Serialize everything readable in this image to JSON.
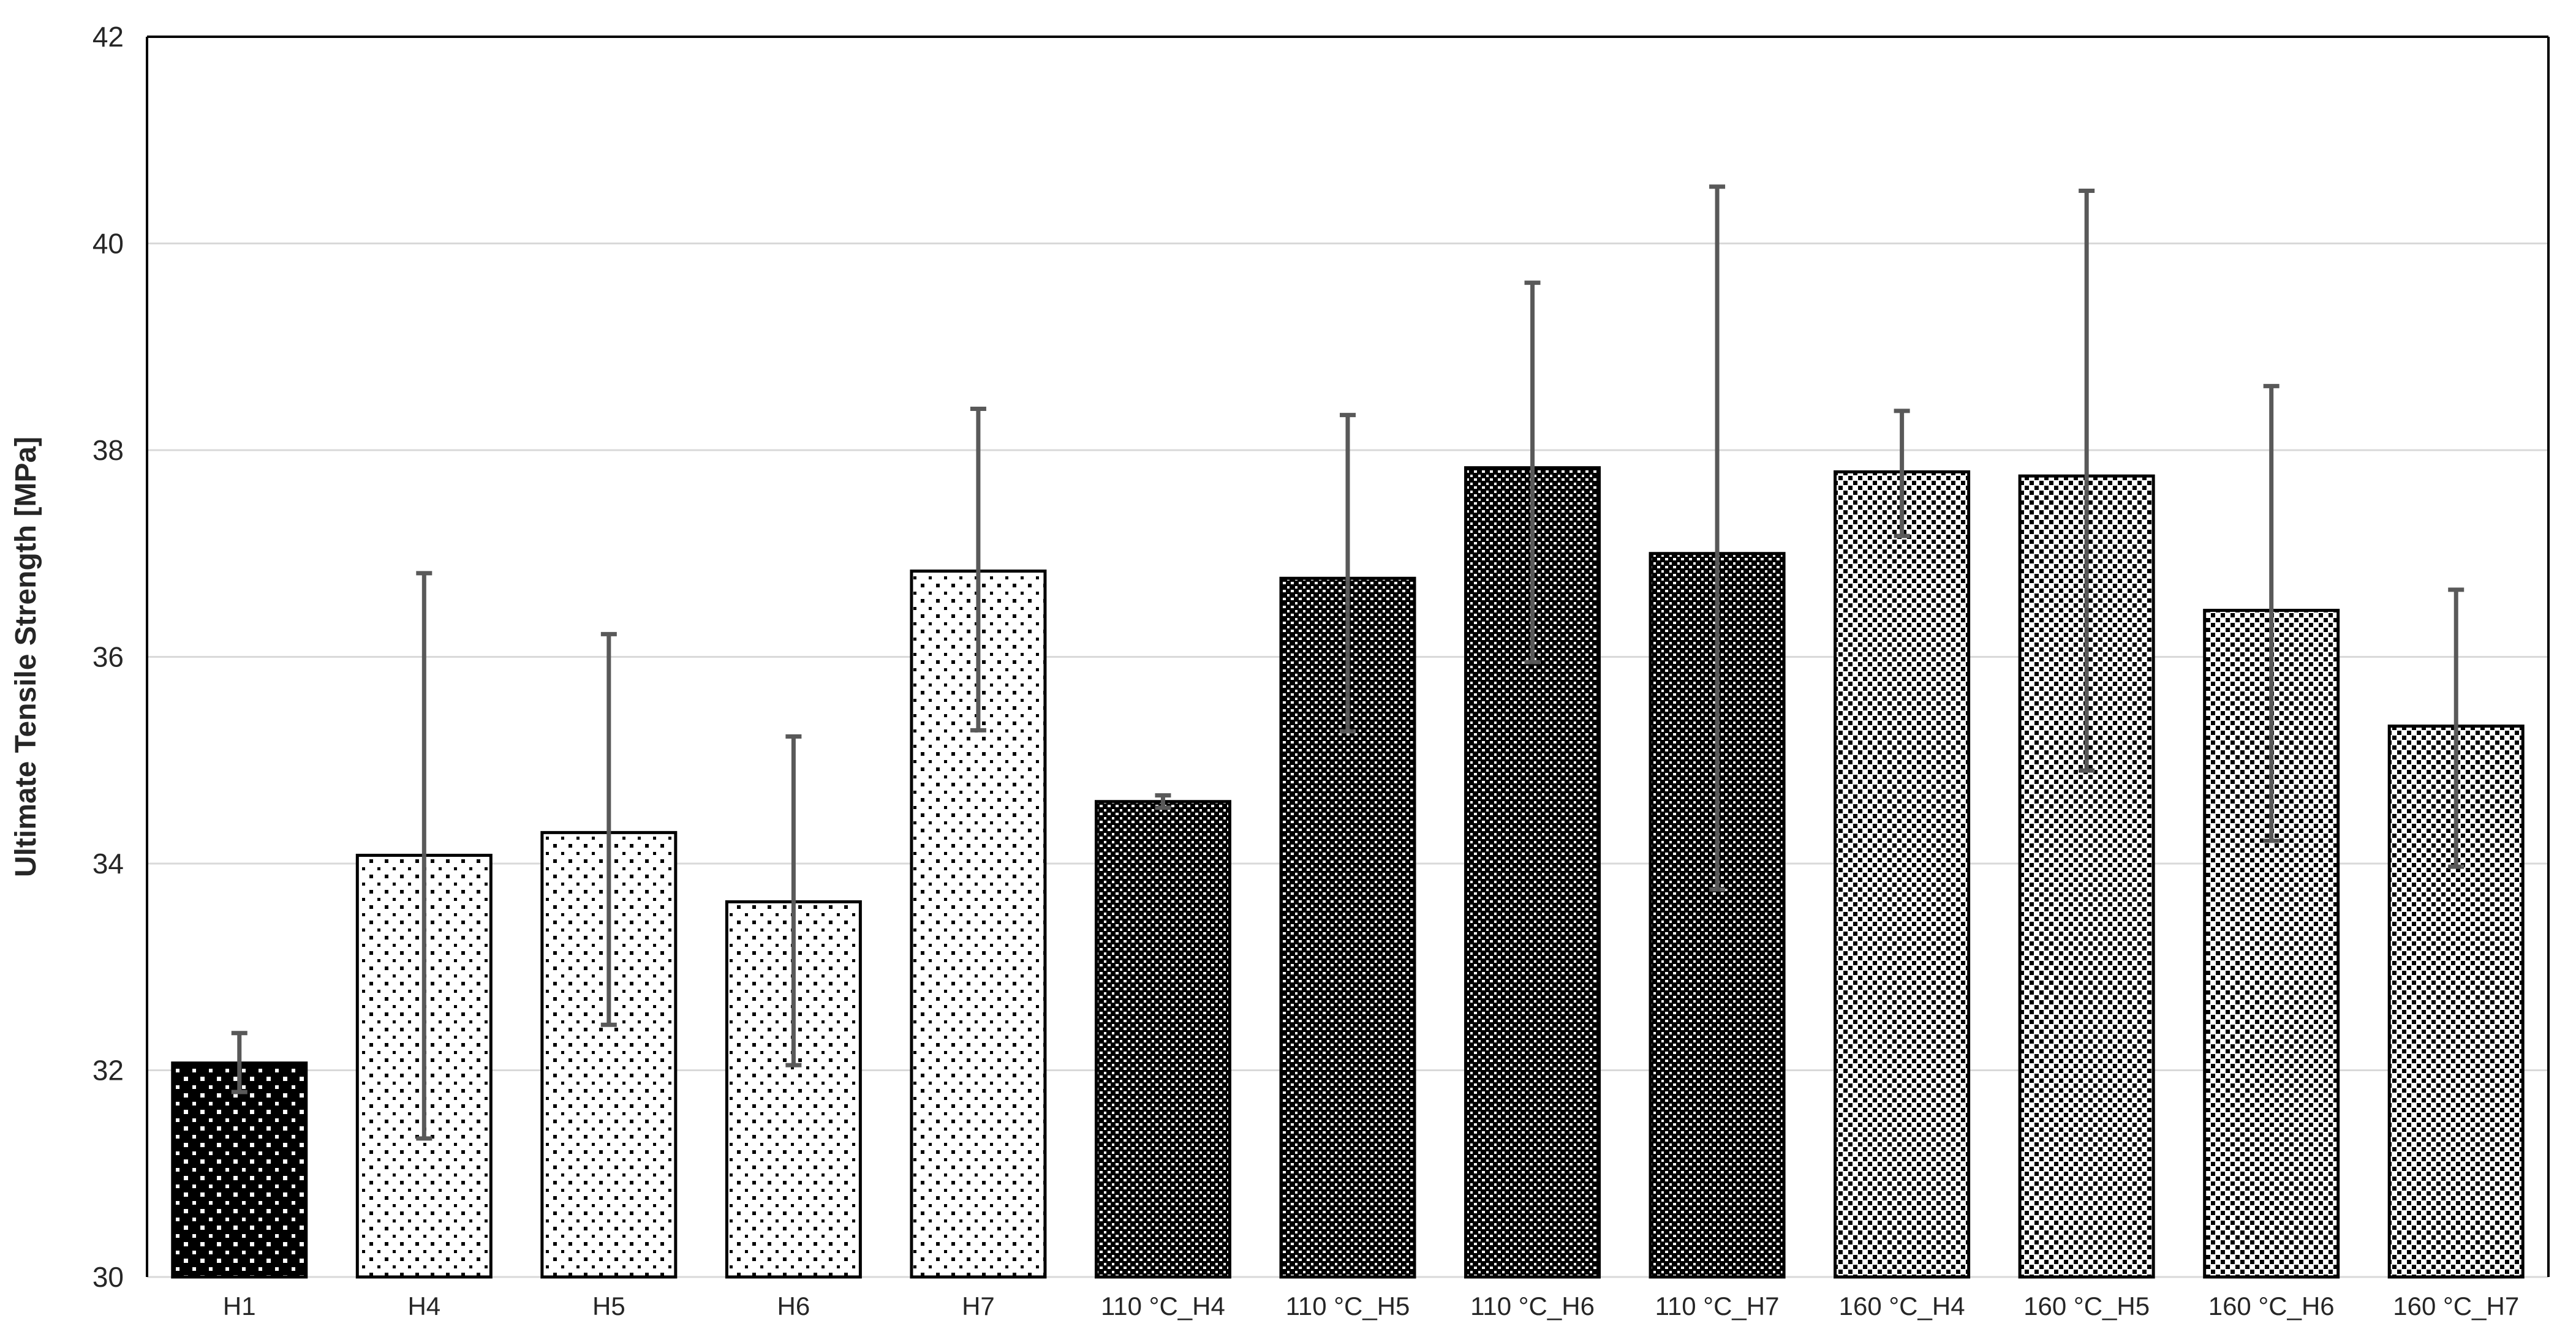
{
  "page": {
    "background": "#ffffff"
  },
  "chart_data": {
    "type": "bar",
    "title": "",
    "xlabel": "",
    "ylabel": "Ultimate Tensile Strength [MPa]",
    "ylim": [
      30,
      42
    ],
    "yticks": [
      30,
      32,
      34,
      36,
      38,
      40,
      42
    ],
    "grid": true,
    "legend_position": "none",
    "categories": [
      "H1",
      "H4",
      "H5",
      "H6",
      "H7",
      "110 °C_H4",
      "110 °C_H5",
      "110 °C_H6",
      "110 °C_H7",
      "160 °C_H4",
      "160 °C_H5",
      "160 °C_H6",
      "160 °C_H7"
    ],
    "bars": [
      {
        "label": "H1",
        "value": 32.07,
        "error_high": 32.36,
        "error_low": 31.79,
        "pattern": "black-with-white-dots"
      },
      {
        "label": "H4",
        "value": 34.08,
        "error_high": 36.81,
        "error_low": 31.34,
        "pattern": "white-with-sparse-black-dots"
      },
      {
        "label": "H5",
        "value": 34.3,
        "error_high": 36.22,
        "error_low": 32.44,
        "pattern": "white-with-sparse-black-dots"
      },
      {
        "label": "H6",
        "value": 33.63,
        "error_high": 35.23,
        "error_low": 32.05,
        "pattern": "white-with-sparse-black-dots"
      },
      {
        "label": "H7",
        "value": 36.83,
        "error_high": 38.4,
        "error_low": 35.29,
        "pattern": "white-with-sparse-black-dots"
      },
      {
        "label": "110 °C_H4",
        "value": 34.6,
        "error_high": 34.66,
        "error_low": 34.54,
        "pattern": "black-with-dense-white-dots"
      },
      {
        "label": "110 °C_H5",
        "value": 36.76,
        "error_high": 38.34,
        "error_low": 35.28,
        "pattern": "black-with-dense-white-dots"
      },
      {
        "label": "110 °C_H6",
        "value": 37.83,
        "error_high": 39.62,
        "error_low": 35.95,
        "pattern": "black-with-dense-white-dots"
      },
      {
        "label": "110 °C_H7",
        "value": 37.0,
        "error_high": 40.55,
        "error_low": 33.75,
        "pattern": "black-with-dense-white-dots"
      },
      {
        "label": "160 °C_H4",
        "value": 37.79,
        "error_high": 38.38,
        "error_low": 37.17,
        "pattern": "white-with-dense-black-dots"
      },
      {
        "label": "160 °C_H5",
        "value": 37.75,
        "error_high": 40.51,
        "error_low": 34.9,
        "pattern": "white-with-dense-black-dots"
      },
      {
        "label": "160 °C_H6",
        "value": 36.45,
        "error_high": 38.62,
        "error_low": 34.22,
        "pattern": "white-with-dense-black-dots"
      },
      {
        "label": "160 °C_H7",
        "value": 35.33,
        "error_high": 36.65,
        "error_low": 33.97,
        "pattern": "white-with-dense-black-dots"
      }
    ],
    "error_bar_color": "#595959",
    "bar_outline_color": "#000000",
    "gridline_color": "#d9d9d9",
    "axis_border_color": "#000000",
    "tick_label_color": "#262626"
  }
}
